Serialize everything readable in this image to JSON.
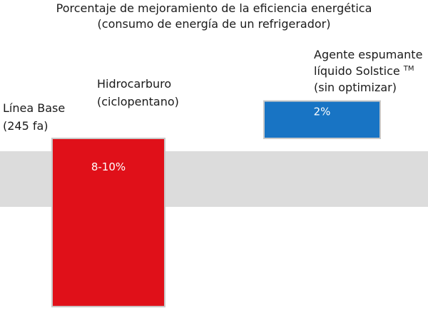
{
  "chart_data": {
    "type": "bar",
    "title": "Porcentaje de mejoramiento de la eficiencia energética",
    "subtitle": "(consumo de energía de un refrigerador)",
    "baseline": {
      "label_lines": [
        "Línea Base",
        "(245 fa)"
      ]
    },
    "categories": [
      [
        "Hidrocarburo",
        "(ciclopentano)"
      ],
      [
        "Agente espumante",
        "líquido Solstice",
        "(sin optimizar)"
      ]
    ],
    "trademark": "TM",
    "values": [
      -9,
      2
    ],
    "data_labels": [
      "8-10%",
      "2%"
    ],
    "colors": {
      "baseline_band": "#dcdcdc",
      "bar_down": "#e01019",
      "bar_up": "#1874c4",
      "bar_outline": "#c9c9c9"
    }
  }
}
